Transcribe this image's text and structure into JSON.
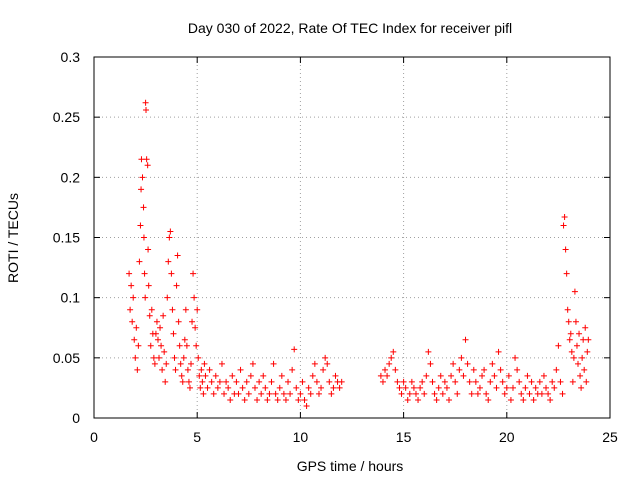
{
  "chart_data": {
    "type": "scatter",
    "title": "Day 030 of 2022, Rate Of TEC Index for receiver pifl",
    "xlabel": "GPS time / hours",
    "ylabel": "ROTI / TECUs",
    "xlim": [
      0,
      25
    ],
    "ylim": [
      0,
      0.3
    ],
    "xticks": [
      0,
      5,
      10,
      15,
      20,
      25
    ],
    "xtick_labels": [
      "0",
      "5",
      "10",
      "15",
      "20",
      "25"
    ],
    "yticks": [
      0,
      0.05,
      0.1,
      0.15,
      0.2,
      0.25,
      0.3
    ],
    "ytick_labels": [
      "0",
      "0.05",
      "0.1",
      "0.15",
      "0.2",
      "0.25",
      "0.3"
    ],
    "grid": true,
    "marker": "+",
    "color": "#ff0000",
    "series": [
      {
        "name": "ROTI",
        "points": [
          [
            1.7,
            0.12
          ],
          [
            1.75,
            0.09
          ],
          [
            1.8,
            0.11
          ],
          [
            1.85,
            0.08
          ],
          [
            1.9,
            0.1
          ],
          [
            1.95,
            0.065
          ],
          [
            2.0,
            0.05
          ],
          [
            2.05,
            0.075
          ],
          [
            2.1,
            0.04
          ],
          [
            2.15,
            0.06
          ],
          [
            2.2,
            0.13
          ],
          [
            2.25,
            0.16
          ],
          [
            2.28,
            0.19
          ],
          [
            2.3,
            0.215
          ],
          [
            2.35,
            0.2
          ],
          [
            2.4,
            0.175
          ],
          [
            2.42,
            0.15
          ],
          [
            2.45,
            0.12
          ],
          [
            2.48,
            0.1
          ],
          [
            2.5,
            0.262
          ],
          [
            2.52,
            0.256
          ],
          [
            2.55,
            0.215
          ],
          [
            2.6,
            0.21
          ],
          [
            2.62,
            0.14
          ],
          [
            2.65,
            0.11
          ],
          [
            2.7,
            0.085
          ],
          [
            2.75,
            0.06
          ],
          [
            2.8,
            0.09
          ],
          [
            2.85,
            0.07
          ],
          [
            2.9,
            0.05
          ],
          [
            2.95,
            0.045
          ],
          [
            3.0,
            0.07
          ],
          [
            3.05,
            0.08
          ],
          [
            3.1,
            0.065
          ],
          [
            3.15,
            0.05
          ],
          [
            3.2,
            0.075
          ],
          [
            3.25,
            0.06
          ],
          [
            3.3,
            0.04
          ],
          [
            3.35,
            0.085
          ],
          [
            3.4,
            0.055
          ],
          [
            3.45,
            0.03
          ],
          [
            3.5,
            0.045
          ],
          [
            3.55,
            0.1
          ],
          [
            3.6,
            0.13
          ],
          [
            3.65,
            0.15
          ],
          [
            3.7,
            0.155
          ],
          [
            3.75,
            0.12
          ],
          [
            3.8,
            0.09
          ],
          [
            3.85,
            0.07
          ],
          [
            3.9,
            0.05
          ],
          [
            3.95,
            0.04
          ],
          [
            4.0,
            0.11
          ],
          [
            4.05,
            0.135
          ],
          [
            4.1,
            0.08
          ],
          [
            4.15,
            0.06
          ],
          [
            4.2,
            0.045
          ],
          [
            4.25,
            0.035
          ],
          [
            4.3,
            0.03
          ],
          [
            4.35,
            0.05
          ],
          [
            4.4,
            0.065
          ],
          [
            4.45,
            0.09
          ],
          [
            4.5,
            0.06
          ],
          [
            4.55,
            0.04
          ],
          [
            4.6,
            0.03
          ],
          [
            4.65,
            0.025
          ],
          [
            4.7,
            0.045
          ],
          [
            4.75,
            0.08
          ],
          [
            4.8,
            0.12
          ],
          [
            4.85,
            0.1
          ],
          [
            4.9,
            0.075
          ],
          [
            4.95,
            0.06
          ],
          [
            5.0,
            0.09
          ],
          [
            5.05,
            0.05
          ],
          [
            5.1,
            0.035
          ],
          [
            5.15,
            0.025
          ],
          [
            5.2,
            0.04
          ],
          [
            5.25,
            0.03
          ],
          [
            5.3,
            0.02
          ],
          [
            5.35,
            0.045
          ],
          [
            5.4,
            0.035
          ],
          [
            5.5,
            0.025
          ],
          [
            5.6,
            0.04
          ],
          [
            5.7,
            0.03
          ],
          [
            5.8,
            0.02
          ],
          [
            5.9,
            0.035
          ],
          [
            6.0,
            0.025
          ],
          [
            6.1,
            0.03
          ],
          [
            6.2,
            0.045
          ],
          [
            6.3,
            0.02
          ],
          [
            6.4,
            0.03
          ],
          [
            6.5,
            0.025
          ],
          [
            6.6,
            0.015
          ],
          [
            6.7,
            0.035
          ],
          [
            6.8,
            0.02
          ],
          [
            6.9,
            0.03
          ],
          [
            7.0,
            0.02
          ],
          [
            7.1,
            0.04
          ],
          [
            7.2,
            0.025
          ],
          [
            7.3,
            0.015
          ],
          [
            7.4,
            0.03
          ],
          [
            7.5,
            0.02
          ],
          [
            7.6,
            0.035
          ],
          [
            7.7,
            0.045
          ],
          [
            7.8,
            0.025
          ],
          [
            7.9,
            0.015
          ],
          [
            8.0,
            0.03
          ],
          [
            8.1,
            0.02
          ],
          [
            8.2,
            0.035
          ],
          [
            8.3,
            0.025
          ],
          [
            8.4,
            0.015
          ],
          [
            8.5,
            0.02
          ],
          [
            8.6,
            0.03
          ],
          [
            8.7,
            0.045
          ],
          [
            8.8,
            0.02
          ],
          [
            8.9,
            0.015
          ],
          [
            9.0,
            0.025
          ],
          [
            9.1,
            0.035
          ],
          [
            9.2,
            0.02
          ],
          [
            9.3,
            0.015
          ],
          [
            9.4,
            0.03
          ],
          [
            9.5,
            0.02
          ],
          [
            9.6,
            0.04
          ],
          [
            9.7,
            0.057
          ],
          [
            9.8,
            0.025
          ],
          [
            9.9,
            0.015
          ],
          [
            10.0,
            0.02
          ],
          [
            10.1,
            0.03
          ],
          [
            10.2,
            0.015
          ],
          [
            10.3,
            0.01
          ],
          [
            10.4,
            0.025
          ],
          [
            10.5,
            0.02
          ],
          [
            10.6,
            0.035
          ],
          [
            10.7,
            0.045
          ],
          [
            10.8,
            0.03
          ],
          [
            10.9,
            0.02
          ],
          [
            11.0,
            0.025
          ],
          [
            11.1,
            0.04
          ],
          [
            11.2,
            0.05
          ],
          [
            11.3,
            0.045
          ],
          [
            11.4,
            0.03
          ],
          [
            11.5,
            0.02
          ],
          [
            11.6,
            0.025
          ],
          [
            11.7,
            0.035
          ],
          [
            11.8,
            0.03
          ],
          [
            11.9,
            0.025
          ],
          [
            12.0,
            0.03
          ],
          [
            13.9,
            0.035
          ],
          [
            14.0,
            0.03
          ],
          [
            14.1,
            0.04
          ],
          [
            14.2,
            0.035
          ],
          [
            14.3,
            0.045
          ],
          [
            14.4,
            0.05
          ],
          [
            14.5,
            0.055
          ],
          [
            14.6,
            0.04
          ],
          [
            14.7,
            0.03
          ],
          [
            14.8,
            0.025
          ],
          [
            14.9,
            0.02
          ],
          [
            15.0,
            0.03
          ],
          [
            15.1,
            0.025
          ],
          [
            15.2,
            0.015
          ],
          [
            15.3,
            0.02
          ],
          [
            15.4,
            0.03
          ],
          [
            15.5,
            0.025
          ],
          [
            15.6,
            0.02
          ],
          [
            15.7,
            0.015
          ],
          [
            15.8,
            0.025
          ],
          [
            15.9,
            0.03
          ],
          [
            16.0,
            0.02
          ],
          [
            16.1,
            0.035
          ],
          [
            16.2,
            0.055
          ],
          [
            16.3,
            0.045
          ],
          [
            16.4,
            0.03
          ],
          [
            16.5,
            0.02
          ],
          [
            16.6,
            0.015
          ],
          [
            16.7,
            0.025
          ],
          [
            16.8,
            0.035
          ],
          [
            16.9,
            0.02
          ],
          [
            17.0,
            0.03
          ],
          [
            17.1,
            0.025
          ],
          [
            17.2,
            0.015
          ],
          [
            17.3,
            0.035
          ],
          [
            17.4,
            0.045
          ],
          [
            17.5,
            0.03
          ],
          [
            17.6,
            0.02
          ],
          [
            17.7,
            0.04
          ],
          [
            17.8,
            0.05
          ],
          [
            17.9,
            0.035
          ],
          [
            18.0,
            0.065
          ],
          [
            18.1,
            0.045
          ],
          [
            18.2,
            0.03
          ],
          [
            18.3,
            0.02
          ],
          [
            18.4,
            0.04
          ],
          [
            18.5,
            0.03
          ],
          [
            18.6,
            0.02
          ],
          [
            18.7,
            0.025
          ],
          [
            18.8,
            0.035
          ],
          [
            18.9,
            0.04
          ],
          [
            19.0,
            0.02
          ],
          [
            19.1,
            0.015
          ],
          [
            19.2,
            0.03
          ],
          [
            19.3,
            0.045
          ],
          [
            19.4,
            0.035
          ],
          [
            19.5,
            0.025
          ],
          [
            19.6,
            0.055
          ],
          [
            19.7,
            0.04
          ],
          [
            19.8,
            0.03
          ],
          [
            19.9,
            0.02
          ],
          [
            20.0,
            0.025
          ],
          [
            20.1,
            0.035
          ],
          [
            20.2,
            0.015
          ],
          [
            20.3,
            0.025
          ],
          [
            20.4,
            0.05
          ],
          [
            20.5,
            0.04
          ],
          [
            20.6,
            0.03
          ],
          [
            20.7,
            0.02
          ],
          [
            20.8,
            0.015
          ],
          [
            20.9,
            0.025
          ],
          [
            21.0,
            0.035
          ],
          [
            21.1,
            0.02
          ],
          [
            21.2,
            0.03
          ],
          [
            21.3,
            0.015
          ],
          [
            21.4,
            0.025
          ],
          [
            21.5,
            0.02
          ],
          [
            21.6,
            0.03
          ],
          [
            21.7,
            0.02
          ],
          [
            21.8,
            0.035
          ],
          [
            21.9,
            0.025
          ],
          [
            22.0,
            0.02
          ],
          [
            22.1,
            0.015
          ],
          [
            22.2,
            0.03
          ],
          [
            22.3,
            0.025
          ],
          [
            22.4,
            0.04
          ],
          [
            22.5,
            0.06
          ],
          [
            22.6,
            0.03
          ],
          [
            22.7,
            0.02
          ],
          [
            22.75,
            0.16
          ],
          [
            22.8,
            0.167
          ],
          [
            22.85,
            0.14
          ],
          [
            22.9,
            0.12
          ],
          [
            22.95,
            0.09
          ],
          [
            23.0,
            0.08
          ],
          [
            23.05,
            0.065
          ],
          [
            23.1,
            0.07
          ],
          [
            23.15,
            0.055
          ],
          [
            23.2,
            0.03
          ],
          [
            23.25,
            0.05
          ],
          [
            23.3,
            0.105
          ],
          [
            23.35,
            0.08
          ],
          [
            23.4,
            0.06
          ],
          [
            23.45,
            0.045
          ],
          [
            23.5,
            0.07
          ],
          [
            23.55,
            0.035
          ],
          [
            23.6,
            0.025
          ],
          [
            23.65,
            0.05
          ],
          [
            23.7,
            0.065
          ],
          [
            23.75,
            0.04
          ],
          [
            23.8,
            0.075
          ],
          [
            23.85,
            0.03
          ],
          [
            23.9,
            0.055
          ],
          [
            23.95,
            0.065
          ]
        ]
      }
    ]
  }
}
